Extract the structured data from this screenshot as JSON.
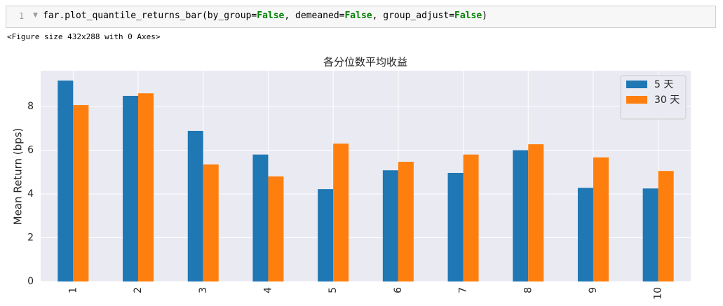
{
  "cell": {
    "line_number": 1,
    "code": [
      "far.plot_quantile_returns_bar(by_group=",
      "False",
      ", demeaned=",
      "False",
      ", group_adjust=",
      "False",
      ")"
    ]
  },
  "output": "<Figure size 432x288 with 0 Axes>",
  "chart_data": {
    "type": "bar",
    "title": "各分位数平均收益",
    "y_label": "Mean Return (bps)",
    "categories": [
      "1",
      "2",
      "3",
      "4",
      "5",
      "6",
      "7",
      "8",
      "9",
      "10"
    ],
    "series": [
      {
        "name": "5 天",
        "color": "#1f77b4",
        "values": [
          9.18,
          8.48,
          6.88,
          5.8,
          4.22,
          5.08,
          4.96,
          6.0,
          4.28,
          4.25
        ]
      },
      {
        "name": "30 天",
        "color": "#ff7f0e",
        "values": [
          8.06,
          8.6,
          5.35,
          4.8,
          6.3,
          5.47,
          5.8,
          6.27,
          5.67,
          5.05
        ]
      }
    ],
    "ylim": [
      0,
      9.63
    ],
    "yticks": [
      0,
      2,
      4,
      6,
      8
    ],
    "grid": true,
    "legend": "upper-right"
  }
}
